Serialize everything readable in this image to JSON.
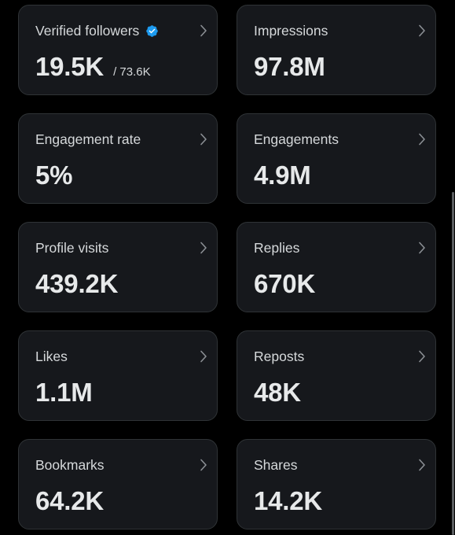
{
  "colors": {
    "background": "#000000",
    "card_background": "#16181c",
    "card_border": "#2f3336",
    "text_primary": "#e7e9ea",
    "text_secondary": "#d6d9db",
    "verified_badge": "#1d9bf0"
  },
  "cards": [
    {
      "label": "Verified followers",
      "value": "19.5K",
      "subvalue": "/ 73.6K",
      "icon": "verified-badge-icon"
    },
    {
      "label": "Impressions",
      "value": "97.8M"
    },
    {
      "label": "Engagement rate",
      "value": "5%"
    },
    {
      "label": "Engagements",
      "value": "4.9M"
    },
    {
      "label": "Profile visits",
      "value": "439.2K"
    },
    {
      "label": "Replies",
      "value": "670K"
    },
    {
      "label": "Likes",
      "value": "1.1M"
    },
    {
      "label": "Reposts",
      "value": "48K"
    },
    {
      "label": "Bookmarks",
      "value": "64.2K"
    },
    {
      "label": "Shares",
      "value": "14.2K"
    }
  ]
}
